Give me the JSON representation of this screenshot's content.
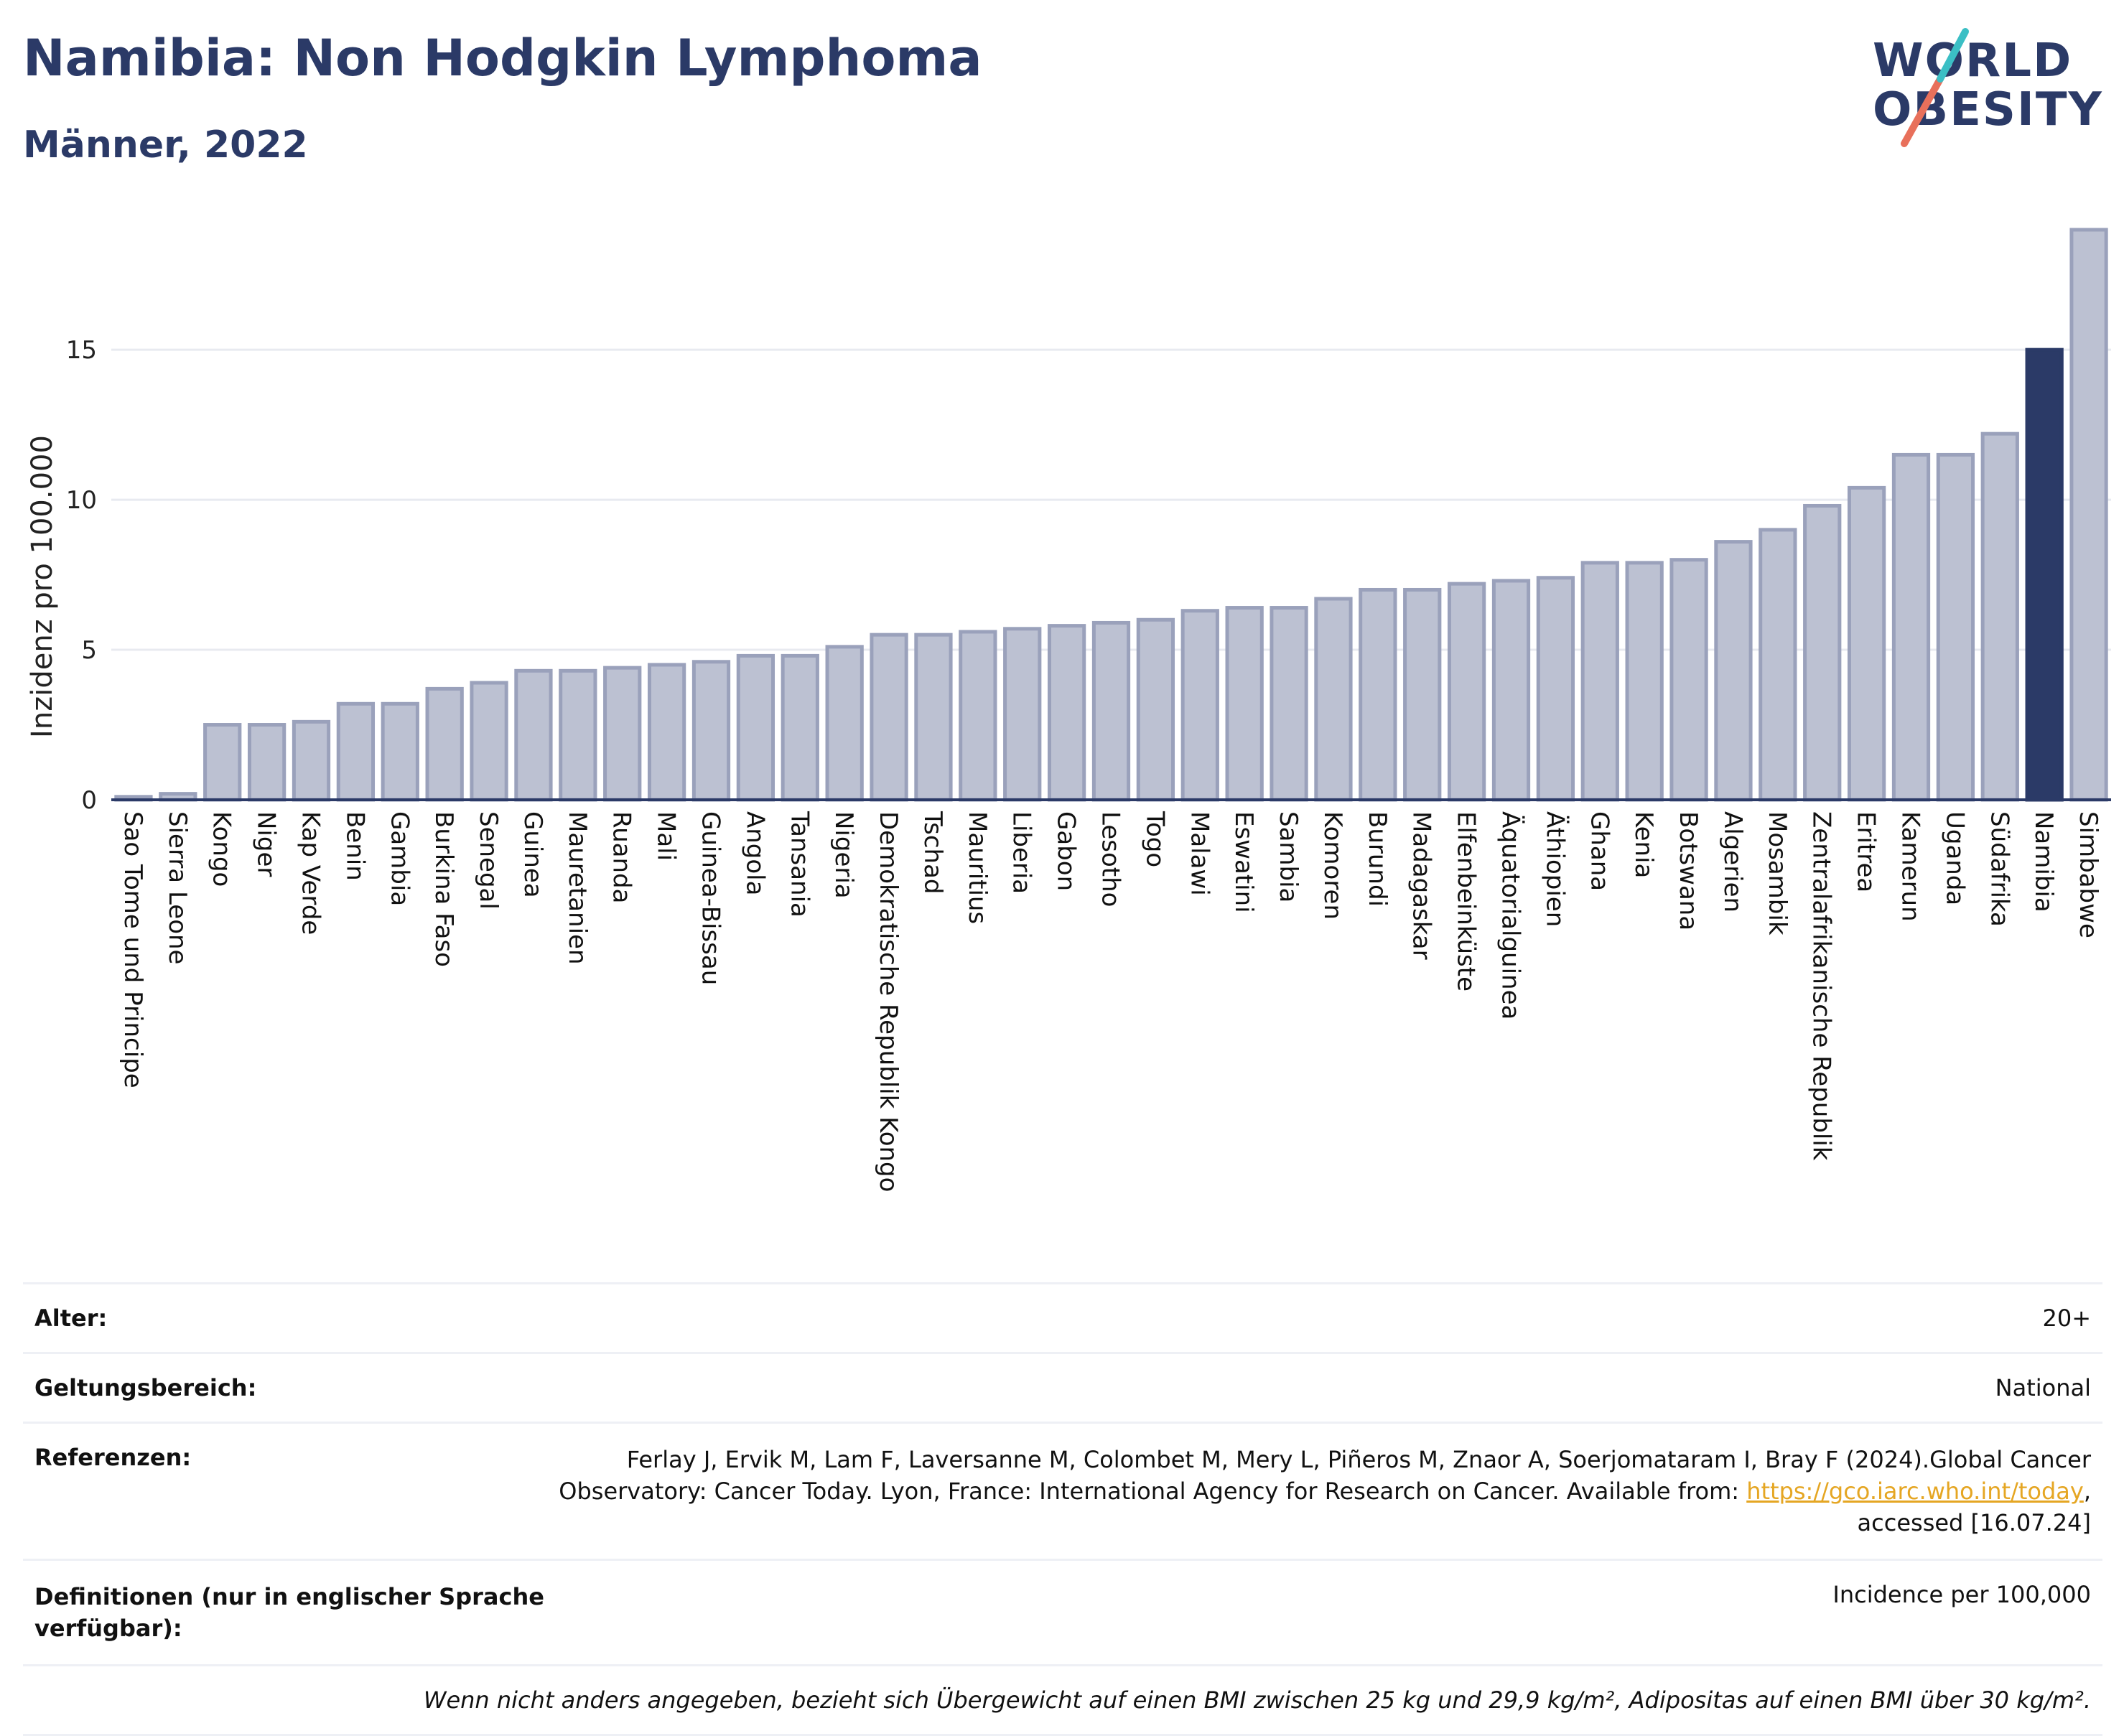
{
  "header": {
    "title": "Namibia: Non Hodgkin Lymphoma",
    "subtitle": "Männer, 2022"
  },
  "logo": {
    "line1": "WORLD",
    "line2": "OBESITY",
    "accent_teal": "#3bbfc5",
    "accent_coral": "#e8705b"
  },
  "colors": {
    "bar": "#bcc1d2",
    "bar_stroke": "#9aa1bb",
    "highlight": "#2b3a67",
    "grid": "#e8eaf0",
    "axis": "#2b3a67"
  },
  "chart_data": {
    "type": "bar",
    "title": "Namibia: Non Hodgkin Lymphoma",
    "subtitle": "Männer, 2022",
    "ylabel": "Inzidenz pro 100.000",
    "xlabel": "",
    "ylim": [
      0,
      19
    ],
    "yticks": [
      0,
      5,
      10,
      15
    ],
    "grid": true,
    "highlight": "Namibia",
    "categories": [
      "Sao Tome und Principe",
      "Sierra Leone",
      "Kongo",
      "Niger",
      "Kap Verde",
      "Benin",
      "Gambia",
      "Burkina Faso",
      "Senegal",
      "Guinea",
      "Mauretanien",
      "Ruanda",
      "Mali",
      "Guinea-Bissau",
      "Angola",
      "Tansania",
      "Nigeria",
      "Demokratische Republik Kongo",
      "Tschad",
      "Mauritius",
      "Liberia",
      "Gabon",
      "Lesotho",
      "Togo",
      "Malawi",
      "Eswatini",
      "Sambia",
      "Komoren",
      "Burundi",
      "Madagaskar",
      "Elfenbeinküste",
      "Äquatorialguinea",
      "Äthiopien",
      "Ghana",
      "Kenia",
      "Botswana",
      "Algerien",
      "Mosambik",
      "Zentralafrikanische Republik",
      "Eritrea",
      "Kamerun",
      "Uganda",
      "Südafrika",
      "Namibia",
      "Simbabwe"
    ],
    "values": [
      0.1,
      0.2,
      2.5,
      2.5,
      2.6,
      3.2,
      3.2,
      3.7,
      3.9,
      4.3,
      4.3,
      4.4,
      4.5,
      4.6,
      4.8,
      4.8,
      5.1,
      5.5,
      5.5,
      5.6,
      5.7,
      5.8,
      5.9,
      6.0,
      6.3,
      6.4,
      6.4,
      6.7,
      7.0,
      7.0,
      7.2,
      7.3,
      7.4,
      7.9,
      7.9,
      8.0,
      8.6,
      9.0,
      9.8,
      10.4,
      11.5,
      11.5,
      12.2,
      15.0,
      19.0
    ]
  },
  "info": {
    "age_label": "Alter:",
    "age_value": "20+",
    "scope_label": "Geltungsbereich:",
    "scope_value": "National",
    "refs_label": "Referenzen:",
    "refs_text": "Ferlay J, Ervik M, Lam F, Laversanne M, Colombet M, Mery L, Piñeros M, Znaor A, Soerjomataram I, Bray F (2024).Global Cancer Observatory: Cancer Today. Lyon, France: International Agency for Research on Cancer. Available from: ",
    "refs_link": "https://gco.iarc.who.int/today",
    "refs_tail": ", accessed [16.07.24]",
    "defs_label": "Definitionen (nur in englischer Sprache verfügbar):",
    "defs_value": "Incidence per 100,000",
    "note": "Wenn nicht anders angegeben, bezieht sich Übergewicht auf einen BMI zwischen 25 kg und 29,9 kg/m², Adipositas auf einen BMI über 30 kg/m²."
  }
}
